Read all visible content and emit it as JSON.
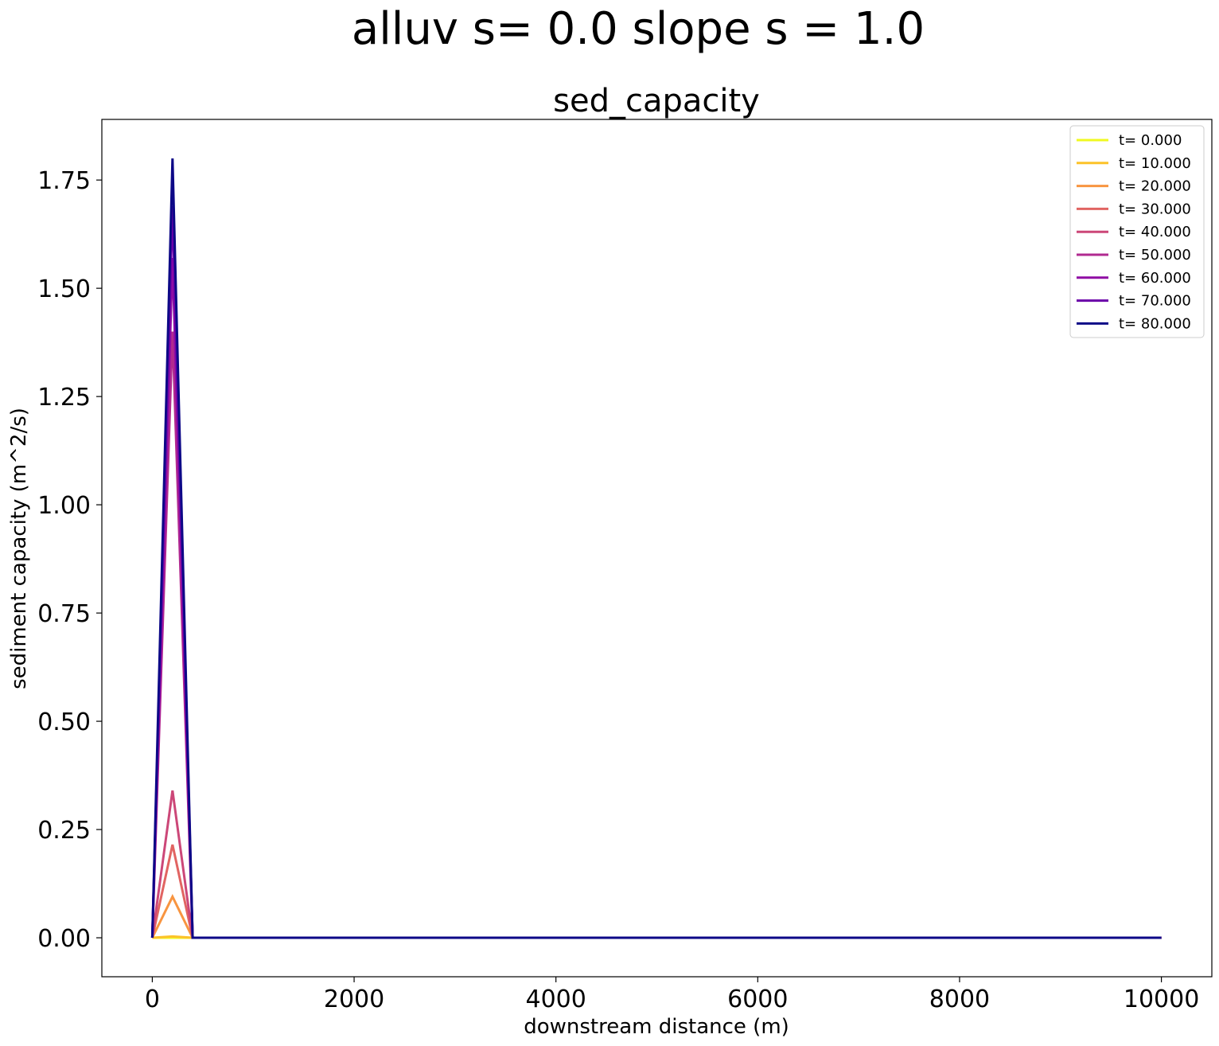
{
  "figure": {
    "suptitle": "alluv s= 0.0     slope s = 1.0"
  },
  "chart_data": {
    "type": "line",
    "title": "sed_capacity",
    "xlabel": "downstream distance (m)",
    "ylabel": "sediment capacity (m^2/s)",
    "xlim": [
      -500,
      10500
    ],
    "ylim": [
      -0.09,
      1.89
    ],
    "xticks": [
      0,
      2000,
      4000,
      6000,
      8000,
      10000
    ],
    "yticks": [
      0.0,
      0.25,
      0.5,
      0.75,
      1.0,
      1.25,
      1.5,
      1.75
    ],
    "ytick_labels": [
      "0.00",
      "0.25",
      "0.50",
      "0.75",
      "1.00",
      "1.25",
      "1.50",
      "1.75"
    ],
    "grid": false,
    "legend_position": "top-right",
    "series": [
      {
        "name": "t= 0.000",
        "color": "#f0f921",
        "x": [
          0,
          200,
          400,
          10000
        ],
        "y": [
          0.0,
          0.0,
          0.0,
          0.0
        ]
      },
      {
        "name": "t= 10.000",
        "color": "#fcc229",
        "x": [
          0,
          200,
          400,
          10000
        ],
        "y": [
          0.0,
          0.003,
          0.0,
          0.0
        ]
      },
      {
        "name": "t= 20.000",
        "color": "#f89540",
        "x": [
          0,
          200,
          400,
          10000
        ],
        "y": [
          0.0,
          0.095,
          0.0,
          0.0
        ]
      },
      {
        "name": "t= 30.000",
        "color": "#e16462",
        "x": [
          0,
          200,
          400,
          10000
        ],
        "y": [
          0.0,
          0.215,
          0.0,
          0.0
        ]
      },
      {
        "name": "t= 40.000",
        "color": "#cc4778",
        "x": [
          0,
          200,
          400,
          10000
        ],
        "y": [
          0.0,
          0.34,
          0.0,
          0.0
        ]
      },
      {
        "name": "t= 50.000",
        "color": "#b12a90",
        "x": [
          0,
          200,
          400,
          10000
        ],
        "y": [
          0.0,
          1.4,
          0.0,
          0.0
        ]
      },
      {
        "name": "t= 60.000",
        "color": "#8f0da4",
        "x": [
          0,
          200,
          400,
          10000
        ],
        "y": [
          0.0,
          1.57,
          0.0,
          0.0
        ]
      },
      {
        "name": "t= 70.000",
        "color": "#6a00a8",
        "x": [
          0,
          200,
          400,
          10000
        ],
        "y": [
          0.0,
          1.69,
          0.0,
          0.0
        ]
      },
      {
        "name": "t= 80.000",
        "color": "#0d0887",
        "x": [
          0,
          200,
          400,
          10000
        ],
        "y": [
          0.0,
          1.8,
          0.0,
          0.0
        ]
      }
    ]
  }
}
